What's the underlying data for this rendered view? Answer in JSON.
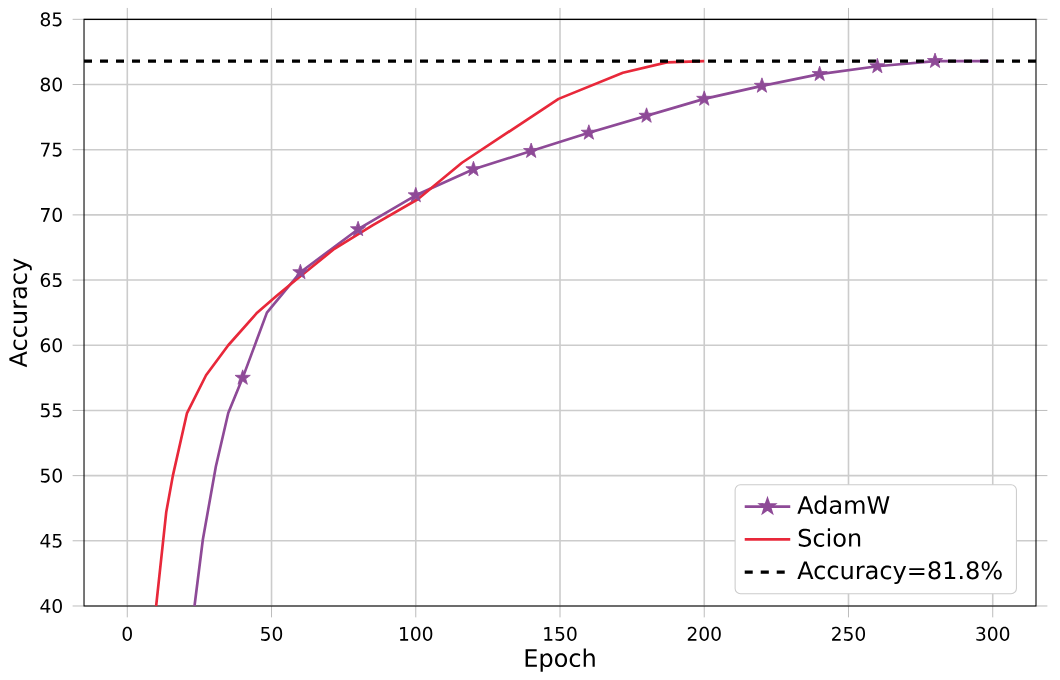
{
  "chart_data": {
    "type": "line",
    "xlabel": "Epoch",
    "ylabel": "Accuracy",
    "xlim": [
      -15,
      315
    ],
    "ylim": [
      40,
      85
    ],
    "xticks": [
      0,
      50,
      100,
      150,
      200,
      250,
      300
    ],
    "yticks": [
      40,
      45,
      50,
      55,
      60,
      65,
      70,
      75,
      80,
      85
    ],
    "grid": true,
    "legend": "bottom right",
    "line_style": "solid",
    "series": [
      {
        "name": "AdamW",
        "color": "#8e4a97",
        "marker": "star",
        "x": [
          23.3,
          26.2,
          30.7,
          35,
          40,
          48.4,
          54,
          60,
          80,
          100,
          120,
          140,
          160,
          180,
          200,
          220,
          240,
          260,
          280,
          298.6
        ],
        "values": [
          40,
          45.1,
          50.7,
          54.8,
          57.5,
          62.5,
          64,
          65.6,
          68.9,
          71.5,
          73.5,
          74.9,
          76.3,
          77.6,
          78.9,
          79.9,
          80.8,
          81.4,
          81.8,
          81.8
        ]
      },
      {
        "name": "Scion",
        "color": "#e8283a",
        "marker": "none",
        "x": [
          10,
          13.5,
          15.8,
          20.7,
          27.3,
          35,
          45,
          51.8,
          58.4,
          71.8,
          85,
          100.7,
          116,
          149.5,
          171.8,
          187,
          200
        ],
        "values": [
          40,
          47.2,
          50,
          54.8,
          57.7,
          60,
          62.5,
          63.8,
          65,
          67.4,
          69.2,
          71.2,
          74,
          78.9,
          80.9,
          81.7,
          81.8
        ]
      }
    ],
    "ref_lines": [
      {
        "axis": "y",
        "value": 81.8,
        "label": "Accuracy=81.8%",
        "color": "#000000",
        "line_style": "dashed"
      }
    ]
  }
}
